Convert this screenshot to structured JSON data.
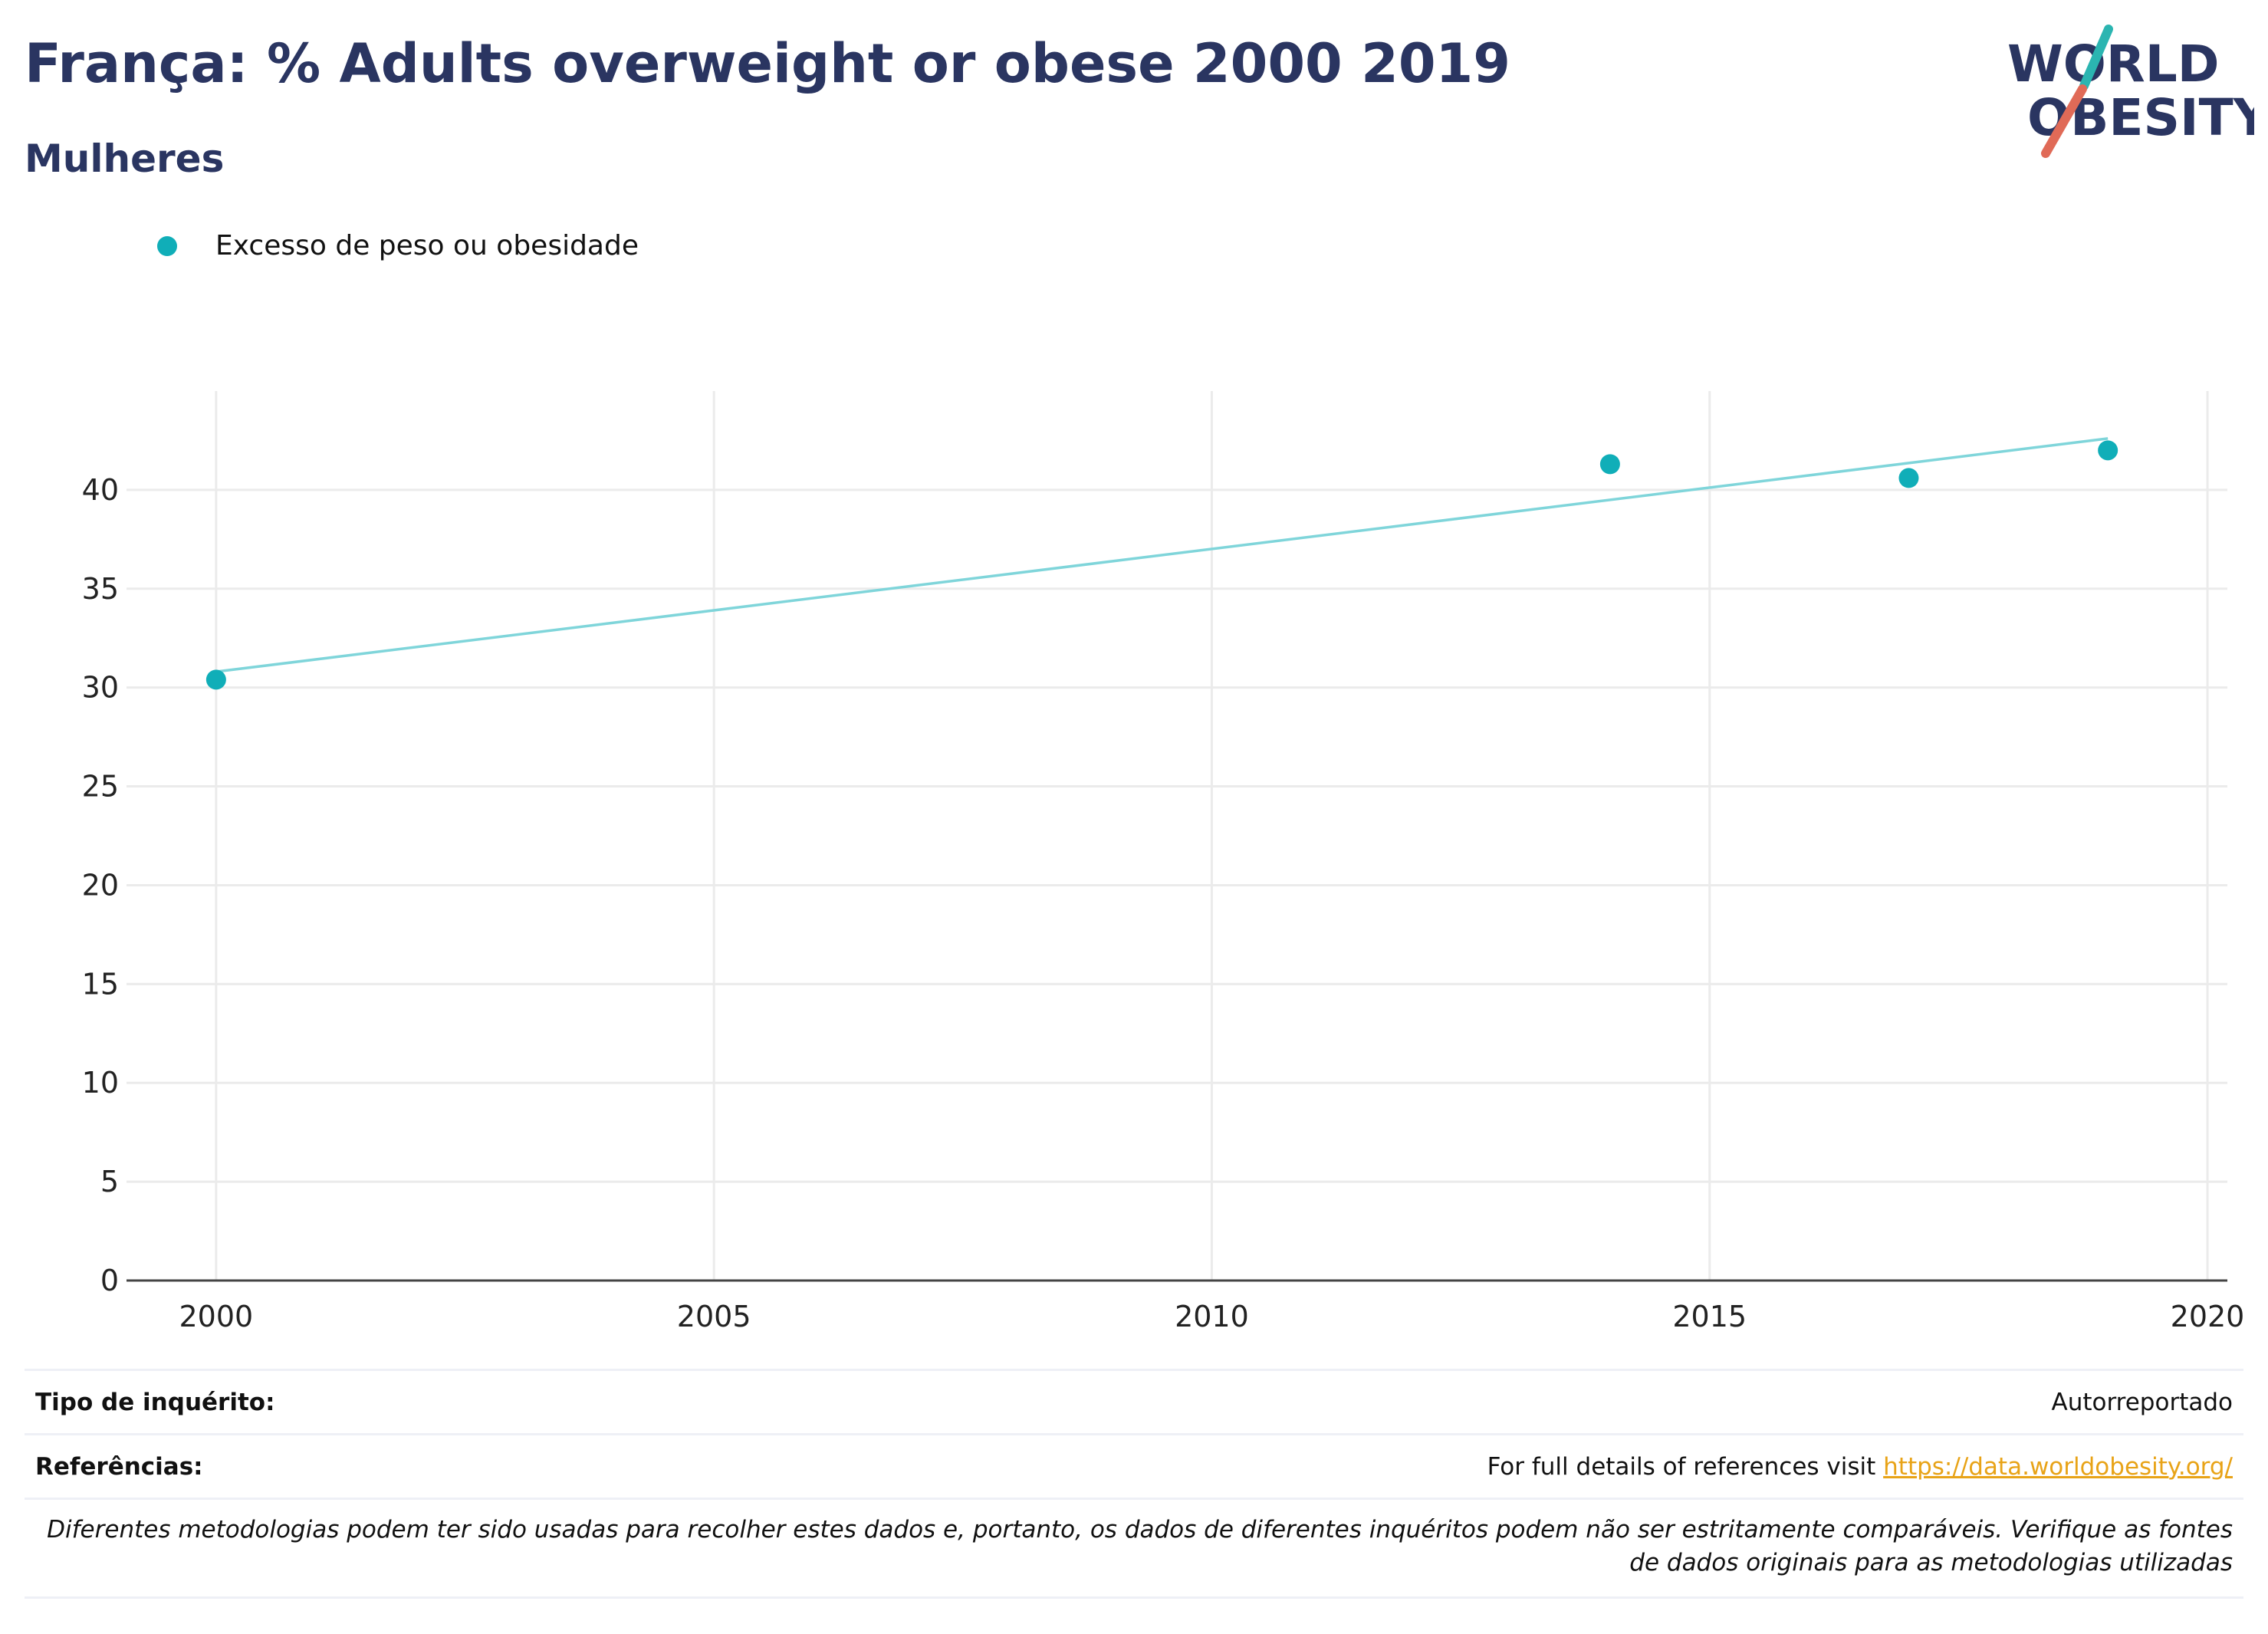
{
  "header": {
    "title": "França: % Adults overweight or obese 2000 2019",
    "subtitle": "Mulheres"
  },
  "logo": {
    "line1": "WORLD",
    "line2": "OBESITY"
  },
  "colors": {
    "title": "#2a3561",
    "series": "#10aeb8",
    "trend": "#7fd5da",
    "grid": "#ebebeb",
    "link": "#e8a317",
    "logo_teal": "#2bb5b1",
    "logo_red": "#e06a57"
  },
  "chart_data": {
    "type": "scatter",
    "legend_position": "top-left",
    "grid": true,
    "xlim": [
      1999.1,
      2020.2
    ],
    "ylim": [
      0,
      45
    ],
    "x_ticks": [
      2000,
      2005,
      2010,
      2015,
      2020
    ],
    "y_ticks": [
      0,
      5,
      10,
      15,
      20,
      25,
      30,
      35,
      40
    ],
    "series": [
      {
        "name": "Excesso de peso ou obesidade",
        "x": [
          2000,
          2014,
          2017,
          2019
        ],
        "y": [
          30.4,
          41.3,
          40.6,
          42.0
        ]
      }
    ],
    "trendline": {
      "x": [
        2000,
        2019
      ],
      "y": [
        30.8,
        42.6
      ]
    }
  },
  "footer": {
    "survey_label": "Tipo de inquérito:",
    "survey_value": "Autorreportado",
    "refs_label": "Referências:",
    "refs_prefix": "For full details of references visit",
    "refs_link": "https://data.worldobesity.org/",
    "note_line1": "Diferentes metodologias podem ter sido usadas para recolher estes dados e, portanto, os dados de diferentes inquéritos podem não ser estritamente comparáveis. Verifique as fontes",
    "note_line2": "de dados originais para as metodologias utilizadas"
  }
}
